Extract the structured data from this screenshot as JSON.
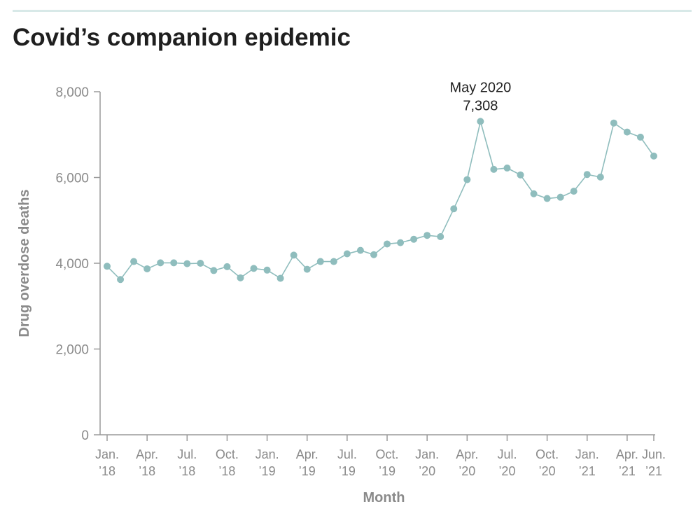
{
  "header": {
    "title": "Covid’s companion epidemic"
  },
  "chart_data": {
    "type": "line",
    "title": "Covid’s companion epidemic",
    "xlabel": "Month",
    "ylabel": "Drug overdose deaths",
    "ylim": [
      0,
      8000
    ],
    "yticks": [
      0,
      2000,
      4000,
      6000,
      8000
    ],
    "ytick_labels": [
      "0",
      "2,000",
      "4,000",
      "6,000",
      "8,000"
    ],
    "grid": false,
    "color": "#8fbdbd",
    "x": [
      "Jan. 2018",
      "Feb. 2018",
      "Mar. 2018",
      "Apr. 2018",
      "May 2018",
      "Jun. 2018",
      "Jul. 2018",
      "Aug. 2018",
      "Sep. 2018",
      "Oct. 2018",
      "Nov. 2018",
      "Dec. 2018",
      "Jan. 2019",
      "Feb. 2019",
      "Mar. 2019",
      "Apr. 2019",
      "May 2019",
      "Jun. 2019",
      "Jul. 2019",
      "Aug. 2019",
      "Sep. 2019",
      "Oct. 2019",
      "Nov. 2019",
      "Dec. 2019",
      "Jan. 2020",
      "Feb. 2020",
      "Mar. 2020",
      "Apr. 2020",
      "May 2020",
      "Jun. 2020",
      "Jul. 2020",
      "Aug. 2020",
      "Sep. 2020",
      "Oct. 2020",
      "Nov. 2020",
      "Dec. 2020",
      "Jan. 2021",
      "Feb. 2021",
      "Mar. 2021",
      "Apr. 2021",
      "May 2021",
      "Jun. 2021"
    ],
    "values": [
      3930,
      3620,
      4040,
      3870,
      4010,
      4010,
      3990,
      4000,
      3830,
      3920,
      3660,
      3880,
      3840,
      3650,
      4190,
      3860,
      4040,
      4040,
      4220,
      4300,
      4200,
      4450,
      4480,
      4560,
      4650,
      4620,
      5270,
      5950,
      7308,
      6190,
      6220,
      6060,
      5620,
      5510,
      5540,
      5680,
      6070,
      6010,
      7270,
      7060,
      6940,
      6500
    ],
    "xticks": [
      {
        "index": 0,
        "label": [
          "Jan.",
          "’18"
        ]
      },
      {
        "index": 3,
        "label": [
          "Apr.",
          "’18"
        ]
      },
      {
        "index": 6,
        "label": [
          "Jul.",
          "’18"
        ]
      },
      {
        "index": 9,
        "label": [
          "Oct.",
          "’18"
        ]
      },
      {
        "index": 12,
        "label": [
          "Jan.",
          "’19"
        ]
      },
      {
        "index": 15,
        "label": [
          "Apr.",
          "’19"
        ]
      },
      {
        "index": 18,
        "label": [
          "Jul.",
          "’19"
        ]
      },
      {
        "index": 21,
        "label": [
          "Oct.",
          "’19"
        ]
      },
      {
        "index": 24,
        "label": [
          "Jan.",
          "’20"
        ]
      },
      {
        "index": 27,
        "label": [
          "Apr.",
          "’20"
        ]
      },
      {
        "index": 30,
        "label": [
          "Jul.",
          "’20"
        ]
      },
      {
        "index": 33,
        "label": [
          "Oct.",
          "’20"
        ]
      },
      {
        "index": 36,
        "label": [
          "Jan.",
          "’21"
        ]
      },
      {
        "index": 39,
        "label": [
          "Apr.",
          "’21"
        ]
      },
      {
        "index": 41,
        "label": [
          "Jun.",
          "’21"
        ]
      }
    ],
    "annotations": [
      {
        "index": 28,
        "lines": [
          "May 2020",
          "7,308"
        ]
      }
    ]
  }
}
